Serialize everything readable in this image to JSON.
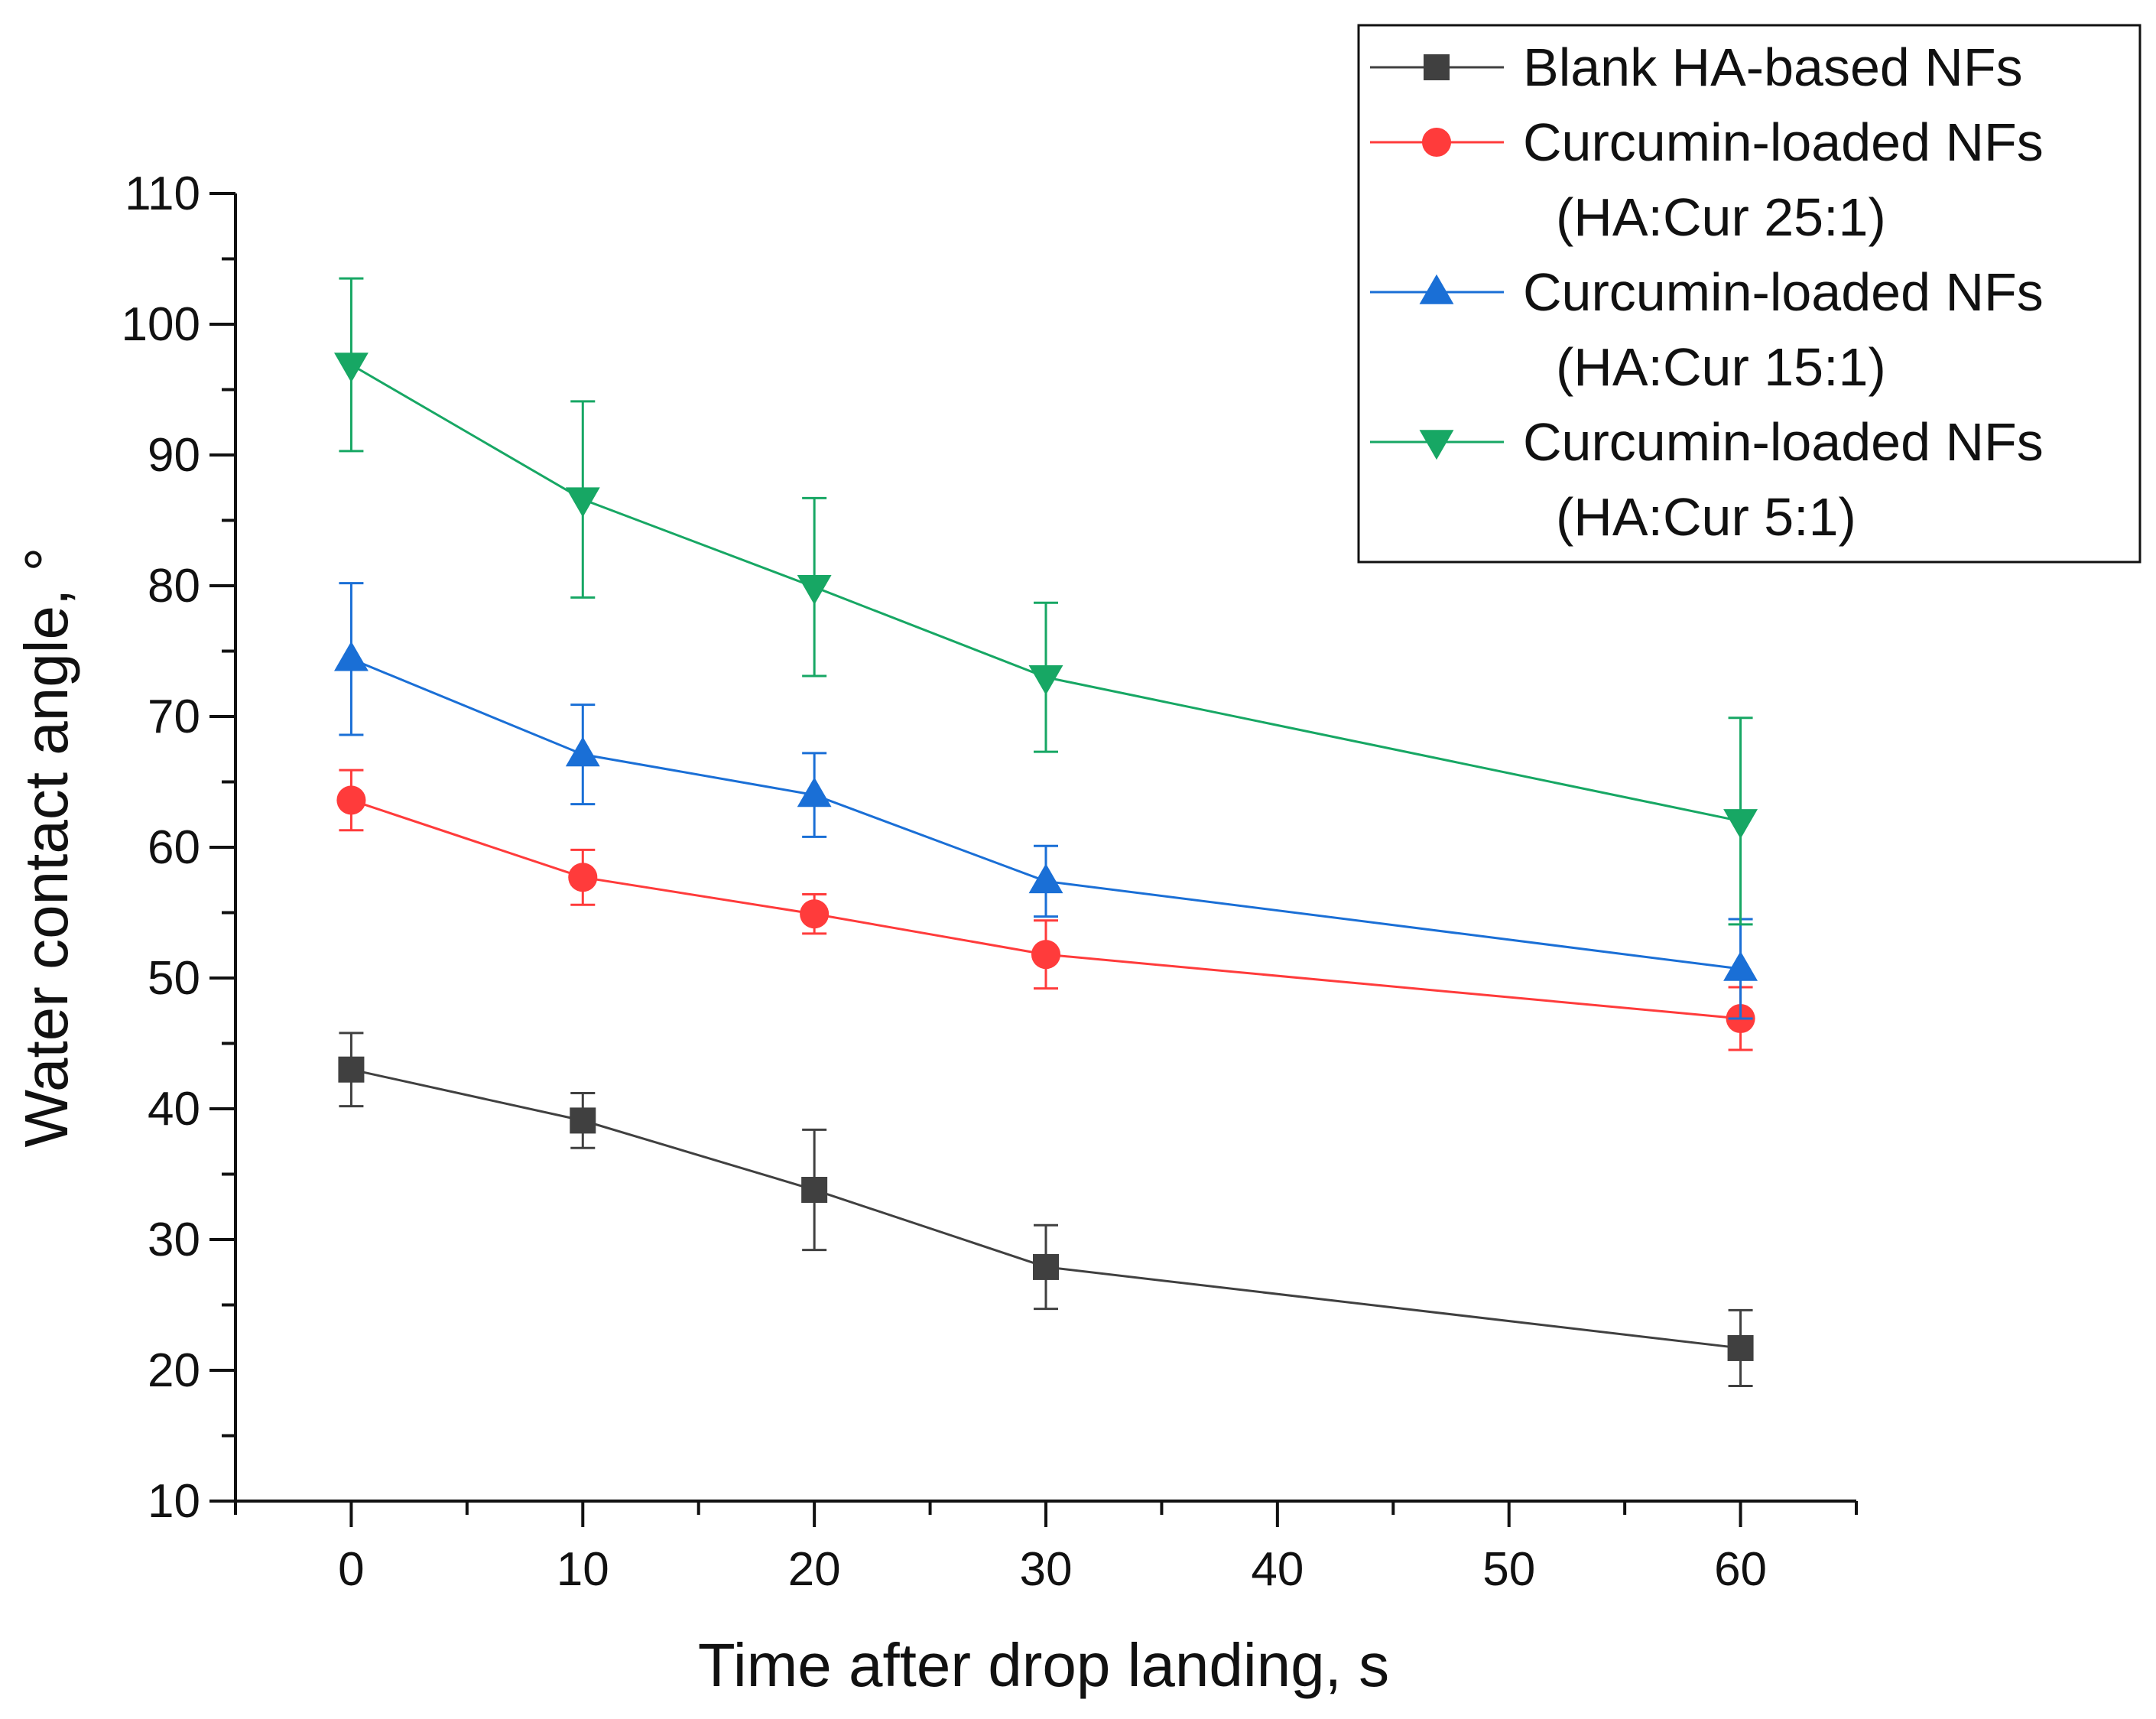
{
  "chart_data": {
    "type": "line",
    "title": "",
    "xlabel": "Time after drop landing, s",
    "ylabel": "Water contact angle, °",
    "xlim": [
      -5,
      65
    ],
    "ylim": [
      10,
      110
    ],
    "x_ticks": [
      0,
      10,
      20,
      30,
      40,
      50,
      60
    ],
    "y_ticks": [
      10,
      20,
      30,
      40,
      50,
      60,
      70,
      80,
      90,
      100,
      110
    ],
    "grid": false,
    "legend_position": "top-right",
    "x": [
      0,
      10,
      20,
      30,
      60
    ],
    "series": [
      {
        "name": "Blank HA-based NFs",
        "legend_lines": [
          "Blank HA-based NFs"
        ],
        "color": "#404040",
        "marker": "square",
        "values": [
          43.0,
          39.1,
          33.8,
          27.9,
          21.7
        ],
        "errors": [
          2.8,
          2.1,
          4.6,
          3.2,
          2.9
        ]
      },
      {
        "name": "Curcumin-loaded NFs (HA:Cur 25:1)",
        "legend_lines": [
          "Curcumin-loaded NFs",
          "(HA:Cur 25:1)"
        ],
        "color": "#ff3b3b",
        "marker": "circle",
        "values": [
          63.6,
          57.7,
          54.9,
          51.8,
          46.9
        ],
        "errors": [
          2.3,
          2.1,
          1.5,
          2.6,
          2.4
        ]
      },
      {
        "name": "Curcumin-loaded NFs (HA:Cur 15:1)",
        "legend_lines": [
          "Curcumin-loaded NFs",
          "(HA:Cur 15:1)"
        ],
        "color": "#1a6fd6",
        "marker": "triangle-up",
        "values": [
          74.4,
          67.1,
          64.0,
          57.4,
          50.7
        ],
        "errors": [
          5.8,
          3.8,
          3.2,
          2.7,
          3.8
        ]
      },
      {
        "name": "Curcumin-loaded NFs (HA:Cur 5:1)",
        "legend_lines": [
          "Curcumin-loaded NFs",
          "(HA:Cur 5:1)"
        ],
        "color": "#17a764",
        "marker": "triangle-down",
        "values": [
          96.9,
          86.6,
          79.9,
          73.0,
          62.0
        ],
        "errors": [
          6.6,
          7.5,
          6.8,
          5.7,
          7.9
        ]
      }
    ]
  }
}
